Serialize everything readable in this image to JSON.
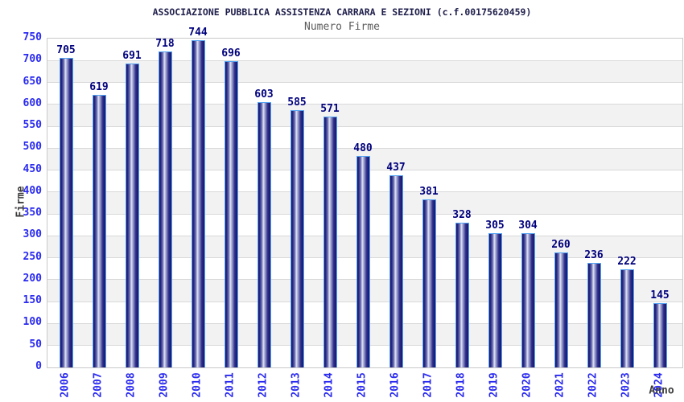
{
  "chart_data": {
    "type": "bar",
    "title": "ASSOCIAZIONE PUBBLICA ASSISTENZA CARRARA E SEZIONI (c.f.00175620459)",
    "subtitle": "Numero Firme",
    "xlabel": "Anno",
    "ylabel": "Firme",
    "categories": [
      "2006",
      "2007",
      "2008",
      "2009",
      "2010",
      "2011",
      "2012",
      "2013",
      "2014",
      "2015",
      "2016",
      "2017",
      "2018",
      "2019",
      "2020",
      "2021",
      "2022",
      "2023",
      "2024"
    ],
    "values": [
      705,
      619,
      691,
      718,
      744,
      696,
      603,
      585,
      571,
      480,
      437,
      381,
      328,
      305,
      304,
      260,
      236,
      222,
      145
    ],
    "ylim": [
      0,
      750
    ],
    "ytick_step": 50,
    "grid": true,
    "legend_position": "none",
    "bands_alternating": true,
    "colors": {
      "tick_label_blue": "#2a2af0",
      "value_label_navy": "#00007d",
      "title_navy": "#20204d",
      "subtitle_gray": "#5c5c5c",
      "axis_title_gray": "#3c3c3c",
      "bar_border_lightblue": "#55a3f2",
      "bar_edge_navy": "#16166e",
      "bar_highlight": "#dfe2f2",
      "gridline": "#d9d9d9",
      "band_gray": "#f2f2f2",
      "plot_border": "#c9c9c9",
      "background": "#ffffff"
    }
  }
}
